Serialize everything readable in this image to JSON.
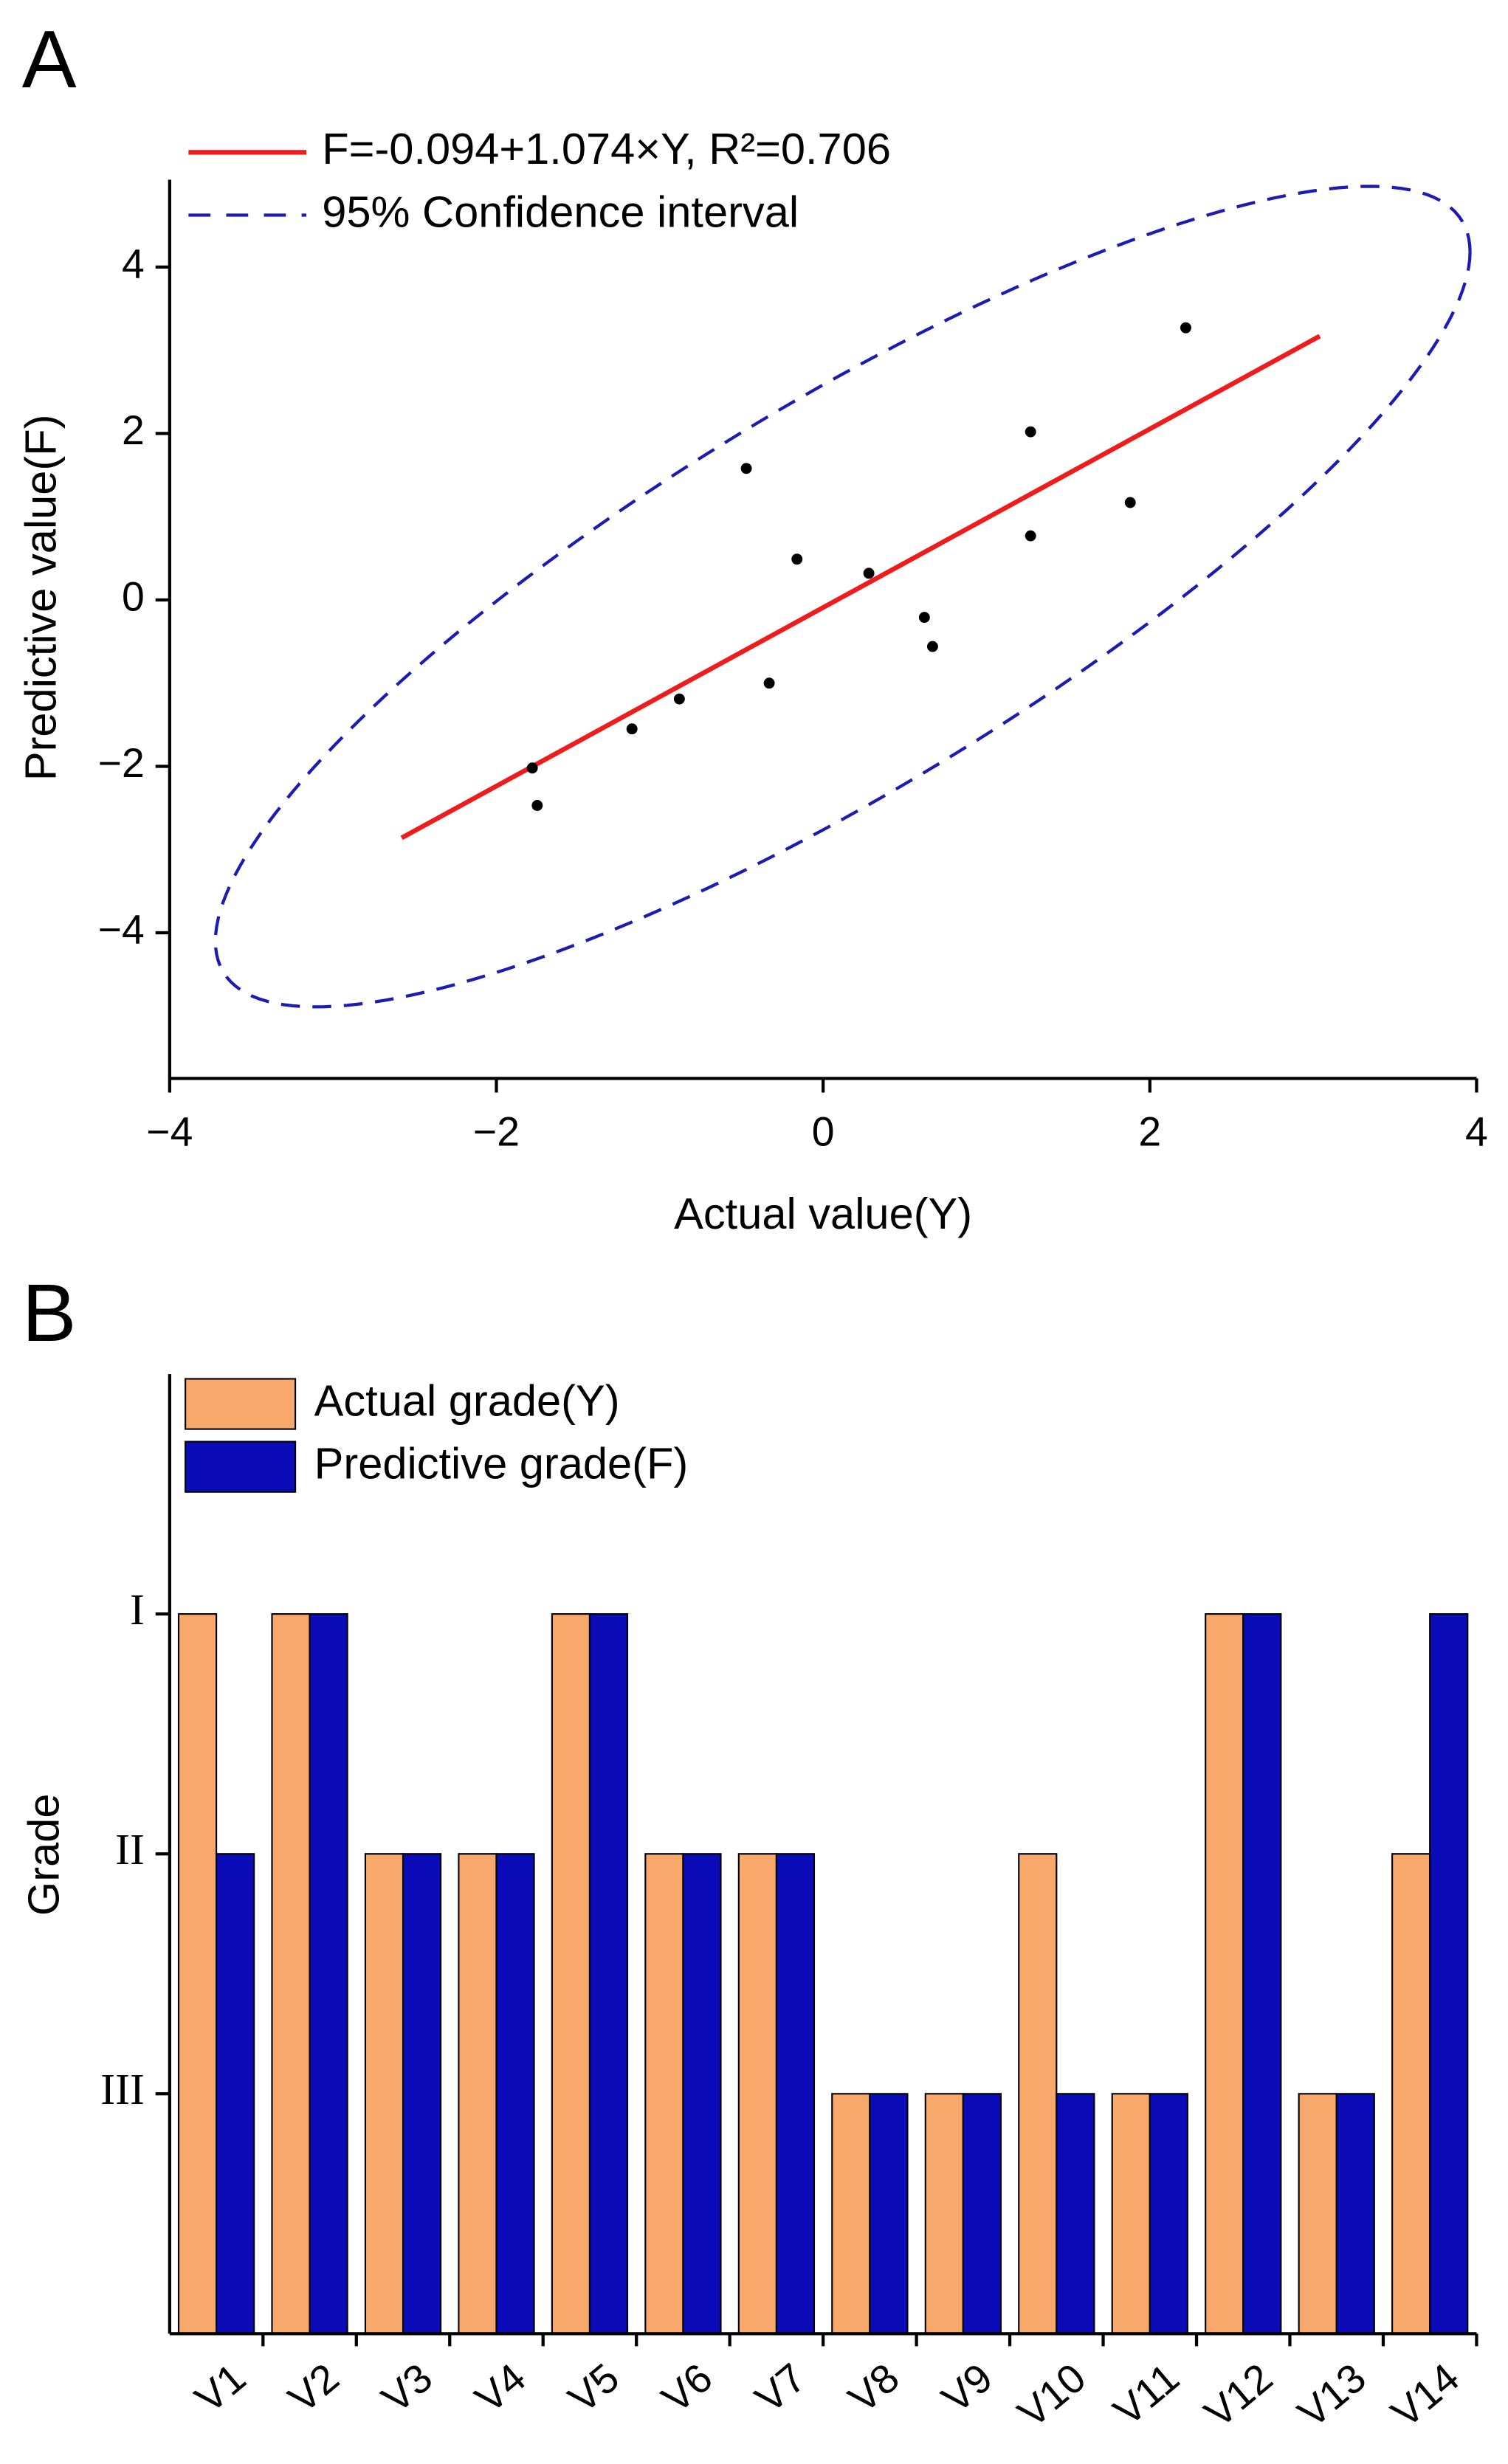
{
  "chart_data": [
    {
      "panel": "A",
      "type": "scatter",
      "xlabel": "Actual value(Y)",
      "ylabel": "Predictive value(F)",
      "x": [
        -1.78,
        -1.75,
        -1.17,
        -0.88,
        -0.47,
        -0.33,
        -0.16,
        0.28,
        0.62,
        0.67,
        1.27,
        1.27,
        1.88,
        2.22
      ],
      "values": [
        -2.02,
        -2.47,
        -1.55,
        -1.19,
        1.58,
        -1.0,
        0.49,
        0.32,
        -0.21,
        -0.56,
        0.77,
        2.02,
        1.17,
        3.27
      ],
      "color": "#000000",
      "fit": {
        "name": "F=-0.094+1.074×Y, R²=0.706",
        "color": "#ee1c1c",
        "x": [
          -2.58,
          3.04
        ],
        "values": [
          -2.86,
          3.17
        ]
      },
      "ellipse": {
        "name": "95% Confidence interval",
        "color": "#1c1cb0",
        "center": [
          0.12,
          0.04
        ],
        "semi": [
          3.84,
          4.93
        ],
        "rho": 0.84
      },
      "xlim": [
        -4,
        4
      ],
      "ylim": [
        -5.75,
        5.05
      ],
      "xticks": [
        {
          "value": -4,
          "label": "−4"
        },
        {
          "value": -2,
          "label": "−2"
        },
        0,
        2,
        4
      ],
      "yticks": [
        {
          "value": -4,
          "label": "−4"
        },
        {
          "value": -2,
          "label": "−2"
        },
        0,
        2,
        4
      ]
    },
    {
      "panel": "B",
      "type": "bar",
      "ylabel": "Grade",
      "categories": [
        "V1",
        "V2",
        "V3",
        "V4",
        "V5",
        "V6",
        "V7",
        "V8",
        "V9",
        "V10",
        "V11",
        "V12",
        "V13",
        "V14"
      ],
      "series": [
        {
          "name": "Actual grade(Y)",
          "color": "#f9a86c",
          "values": [
            3,
            3,
            2,
            2,
            3,
            2,
            2,
            1,
            1,
            2,
            1,
            3,
            1,
            2
          ]
        },
        {
          "name": "Predictive grade(F)",
          "color": "#0b0bb8",
          "values": [
            2,
            3,
            2,
            2,
            3,
            2,
            2,
            1,
            1,
            1,
            1,
            3,
            1,
            3
          ]
        }
      ],
      "ylim": [
        0,
        4
      ],
      "yticks": [
        {
          "value": 3,
          "label": "I"
        },
        {
          "value": 2,
          "label": "II"
        },
        {
          "value": 1,
          "label": "III"
        }
      ]
    }
  ]
}
